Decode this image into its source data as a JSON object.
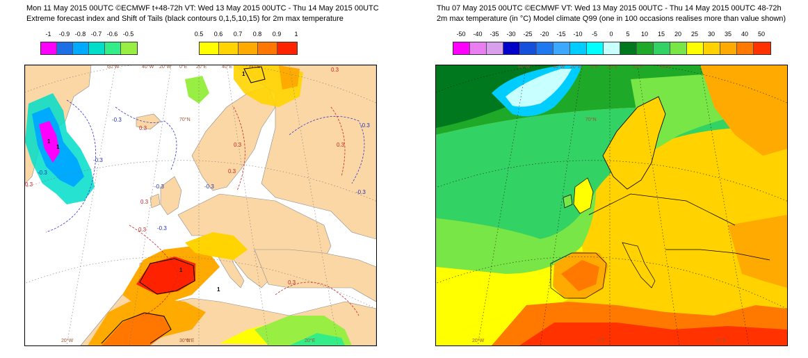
{
  "left_panel": {
    "title_line1": "Mon 11 May 2015 00UTC ©ECMWF t+48-72h  VT: Wed 13 May 2015 00UTC - Thu 14 May 2015 00UTC",
    "title_line2": "Extreme forecast index and Shift of Tails (black contours 0,1,5,10,15) for 2m max temperature",
    "colorbar_negative": {
      "labels": [
        "-1",
        "-0.9",
        "-0.8",
        "-0.7",
        "-0.6",
        "-0.5"
      ],
      "colors": [
        "#ff00ff",
        "#1e6ee6",
        "#00aaff",
        "#00ddc8",
        "#33ee88",
        "#99ee44"
      ]
    },
    "colorbar_positive": {
      "labels": [
        "0.5",
        "0.6",
        "0.7",
        "0.8",
        "0.9",
        "1"
      ],
      "colors": [
        "#ffff00",
        "#ffd400",
        "#ffaa00",
        "#ff7700",
        "#ff2200"
      ]
    },
    "map": {
      "land_color": "#fbd7a6",
      "sea_color": "#ffffff",
      "lon_labels": [
        "60°W",
        "40°W",
        "20°W",
        "0°E",
        "20°E",
        "40°E",
        "60°E",
        "20°W",
        "0°E",
        "20°E"
      ],
      "lat_labels": [
        "60°W",
        "40°W",
        "60°E",
        "40°E",
        "70°N",
        "30°N"
      ],
      "contour_labels": [
        "-0.3",
        "0.3",
        "-0.3",
        "-0.3",
        "0.3",
        "-0.3",
        "-0.3",
        "0.3",
        "-0.3",
        "0.3",
        "-0.3",
        "0.3",
        "0.3",
        "-0.3",
        "0.3",
        "0.3",
        "0.3"
      ],
      "sot_labels": [
        "1",
        "1",
        "1",
        "1",
        "1"
      ]
    }
  },
  "right_panel": {
    "title_line1": "Thu 07 May 2015 00UTC ©ECMWF VT: Wed 13 May 2015 00UTC - Thu 14 May 2015 00UTC    48-72h",
    "title_line2": "2m max temperature (in °C)  Model climate Q99 (one in 100 occasions realises more than value shown)",
    "colorbar": {
      "labels": [
        "-50",
        "-40",
        "-35",
        "-30",
        "-25",
        "-20",
        "-15",
        "-10",
        "-5",
        "0",
        "5",
        "10",
        "15",
        "20",
        "25",
        "30",
        "35",
        "40",
        "50"
      ],
      "colors": [
        "#ff00ff",
        "#e87ef0",
        "#d8a0ec",
        "#0000c8",
        "#1450dc",
        "#1e78f0",
        "#3ca8ff",
        "#00cdff",
        "#00ffff",
        "#c8ffff",
        "#00781e",
        "#1eaa28",
        "#32d264",
        "#78e646",
        "#ffff00",
        "#ffd200",
        "#ffaa00",
        "#ff7800",
        "#ff3200"
      ]
    },
    "map": {
      "lon_labels": [
        "60°W",
        "40°W",
        "20°W",
        "0°E",
        "20°E",
        "40°E",
        "60°E",
        "20°W",
        "0°E",
        "20°E"
      ],
      "lat_labels": [
        "60°W",
        "40°W",
        "60°E",
        "40°E",
        "70°N"
      ]
    }
  }
}
